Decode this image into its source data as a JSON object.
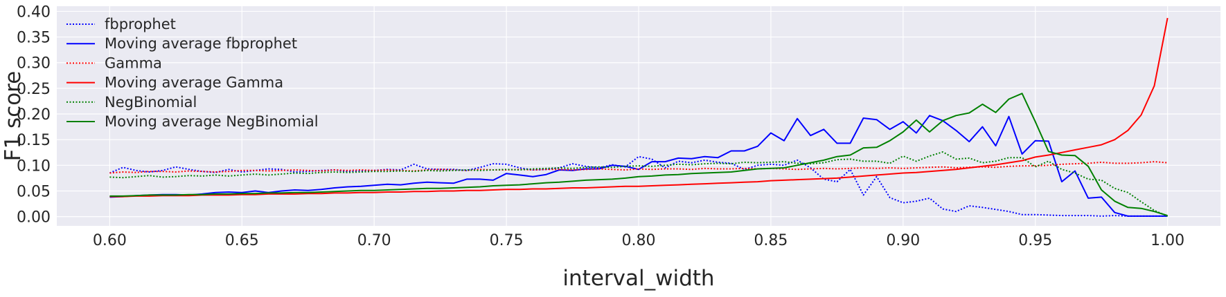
{
  "chart_data": {
    "type": "line",
    "xlabel": "interval_width",
    "ylabel": "F1 score",
    "xlim": [
      0.58,
      1.02
    ],
    "ylim": [
      -0.018,
      0.41
    ],
    "xticks": [
      0.6,
      0.65,
      0.7,
      0.75,
      0.8,
      0.85,
      0.9,
      0.95,
      1.0
    ],
    "xtick_labels": [
      "0.60",
      "0.65",
      "0.70",
      "0.75",
      "0.80",
      "0.85",
      "0.90",
      "0.95",
      "1.00"
    ],
    "yticks": [
      0.0,
      0.05,
      0.1,
      0.15,
      0.2,
      0.25,
      0.3,
      0.35,
      0.4
    ],
    "ytick_labels": [
      "0.00",
      "0.05",
      "0.10",
      "0.15",
      "0.20",
      "0.25",
      "0.30",
      "0.35",
      "0.40"
    ],
    "grid": true,
    "legend_position": "top-left",
    "x": [
      0.6,
      0.605,
      0.61,
      0.615,
      0.62,
      0.625,
      0.63,
      0.635,
      0.64,
      0.645,
      0.65,
      0.655,
      0.66,
      0.665,
      0.67,
      0.675,
      0.68,
      0.685,
      0.69,
      0.695,
      0.7,
      0.705,
      0.71,
      0.715,
      0.72,
      0.725,
      0.73,
      0.735,
      0.74,
      0.745,
      0.75,
      0.755,
      0.76,
      0.765,
      0.77,
      0.775,
      0.78,
      0.785,
      0.79,
      0.795,
      0.8,
      0.805,
      0.81,
      0.815,
      0.82,
      0.825,
      0.83,
      0.835,
      0.84,
      0.845,
      0.85,
      0.855,
      0.86,
      0.865,
      0.87,
      0.875,
      0.88,
      0.885,
      0.89,
      0.895,
      0.9,
      0.905,
      0.91,
      0.915,
      0.92,
      0.925,
      0.93,
      0.935,
      0.94,
      0.945,
      0.95,
      0.955,
      0.96,
      0.965,
      0.97,
      0.975,
      0.98,
      0.985,
      0.99,
      0.995,
      1.0
    ],
    "series": [
      {
        "name": "fbprophet",
        "color": "#0000ff",
        "style": "dotted",
        "values": [
          0.085,
          0.096,
          0.09,
          0.087,
          0.09,
          0.097,
          0.092,
          0.088,
          0.086,
          0.092,
          0.087,
          0.09,
          0.093,
          0.092,
          0.087,
          0.088,
          0.09,
          0.091,
          0.088,
          0.089,
          0.09,
          0.092,
          0.091,
          0.102,
          0.093,
          0.092,
          0.092,
          0.09,
          0.096,
          0.103,
          0.102,
          0.095,
          0.091,
          0.092,
          0.095,
          0.103,
          0.098,
          0.095,
          0.101,
          0.097,
          0.117,
          0.112,
          0.095,
          0.108,
          0.105,
          0.11,
          0.106,
          0.104,
          0.092,
          0.1,
          0.102,
          0.1,
          0.11,
          0.095,
          0.073,
          0.068,
          0.092,
          0.042,
          0.078,
          0.037,
          0.027,
          0.03,
          0.036,
          0.015,
          0.01,
          0.021,
          0.018,
          0.014,
          0.01,
          0.004,
          0.004,
          0.003,
          0.002,
          0.002,
          0.002,
          0.001,
          0.002,
          0.001,
          0.001,
          0.001,
          0.001
        ]
      },
      {
        "name": "Moving average fbprophet",
        "color": "#0000ff",
        "style": "solid",
        "values": [
          0.038,
          0.039,
          0.041,
          0.042,
          0.043,
          0.043,
          0.042,
          0.044,
          0.047,
          0.048,
          0.047,
          0.05,
          0.047,
          0.05,
          0.052,
          0.051,
          0.053,
          0.056,
          0.058,
          0.059,
          0.061,
          0.063,
          0.062,
          0.065,
          0.067,
          0.066,
          0.065,
          0.073,
          0.073,
          0.071,
          0.084,
          0.081,
          0.078,
          0.082,
          0.091,
          0.09,
          0.093,
          0.093,
          0.1,
          0.098,
          0.092,
          0.107,
          0.107,
          0.114,
          0.113,
          0.117,
          0.115,
          0.128,
          0.128,
          0.137,
          0.163,
          0.148,
          0.191,
          0.158,
          0.17,
          0.143,
          0.143,
          0.192,
          0.189,
          0.17,
          0.185,
          0.163,
          0.197,
          0.187,
          0.168,
          0.146,
          0.175,
          0.138,
          0.195,
          0.122,
          0.148,
          0.147,
          0.068,
          0.089,
          0.036,
          0.038,
          0.008,
          0.001,
          0.001,
          0.001,
          0.001
        ]
      },
      {
        "name": "Gamma",
        "color": "#ff0000",
        "style": "dotted",
        "values": [
          0.085,
          0.087,
          0.086,
          0.088,
          0.088,
          0.087,
          0.089,
          0.088,
          0.087,
          0.088,
          0.09,
          0.09,
          0.089,
          0.09,
          0.091,
          0.09,
          0.089,
          0.091,
          0.09,
          0.091,
          0.09,
          0.091,
          0.09,
          0.089,
          0.091,
          0.092,
          0.091,
          0.09,
          0.092,
          0.091,
          0.091,
          0.092,
          0.091,
          0.092,
          0.092,
          0.091,
          0.092,
          0.093,
          0.092,
          0.091,
          0.093,
          0.092,
          0.093,
          0.093,
          0.092,
          0.094,
          0.093,
          0.093,
          0.094,
          0.093,
          0.094,
          0.093,
          0.092,
          0.093,
          0.094,
          0.093,
          0.094,
          0.095,
          0.094,
          0.095,
          0.094,
          0.095,
          0.096,
          0.097,
          0.095,
          0.096,
          0.097,
          0.096,
          0.098,
          0.099,
          0.099,
          0.1,
          0.102,
          0.103,
          0.104,
          0.106,
          0.104,
          0.104,
          0.105,
          0.107,
          0.105
        ]
      },
      {
        "name": "Moving average Gamma",
        "color": "#ff0000",
        "style": "solid",
        "values": [
          0.039,
          0.039,
          0.04,
          0.04,
          0.041,
          0.041,
          0.041,
          0.042,
          0.042,
          0.042,
          0.043,
          0.043,
          0.044,
          0.044,
          0.044,
          0.045,
          0.045,
          0.046,
          0.046,
          0.047,
          0.047,
          0.048,
          0.048,
          0.049,
          0.049,
          0.05,
          0.05,
          0.051,
          0.051,
          0.052,
          0.053,
          0.053,
          0.054,
          0.054,
          0.055,
          0.056,
          0.056,
          0.057,
          0.058,
          0.059,
          0.059,
          0.06,
          0.061,
          0.062,
          0.063,
          0.064,
          0.065,
          0.066,
          0.067,
          0.068,
          0.07,
          0.071,
          0.072,
          0.073,
          0.074,
          0.075,
          0.077,
          0.079,
          0.081,
          0.083,
          0.085,
          0.086,
          0.088,
          0.09,
          0.092,
          0.095,
          0.098,
          0.101,
          0.105,
          0.109,
          0.116,
          0.12,
          0.125,
          0.13,
          0.135,
          0.14,
          0.15,
          0.168,
          0.198,
          0.255,
          0.387
        ]
      },
      {
        "name": "NegBinomial",
        "color": "#008000",
        "style": "dotted",
        "values": [
          0.077,
          0.076,
          0.078,
          0.08,
          0.077,
          0.078,
          0.08,
          0.079,
          0.081,
          0.079,
          0.081,
          0.083,
          0.081,
          0.083,
          0.085,
          0.084,
          0.086,
          0.087,
          0.086,
          0.087,
          0.088,
          0.088,
          0.089,
          0.088,
          0.09,
          0.089,
          0.09,
          0.091,
          0.09,
          0.091,
          0.092,
          0.091,
          0.093,
          0.094,
          0.095,
          0.094,
          0.096,
          0.097,
          0.096,
          0.098,
          0.099,
          0.098,
          0.1,
          0.102,
          0.101,
          0.103,
          0.104,
          0.103,
          0.106,
          0.105,
          0.106,
          0.107,
          0.104,
          0.103,
          0.105,
          0.111,
          0.112,
          0.108,
          0.108,
          0.104,
          0.118,
          0.108,
          0.118,
          0.126,
          0.112,
          0.114,
          0.105,
          0.108,
          0.115,
          0.115,
          0.097,
          0.108,
          0.092,
          0.085,
          0.073,
          0.071,
          0.055,
          0.047,
          0.029,
          0.012,
          0.001
        ]
      },
      {
        "name": "Moving average NegBinomial",
        "color": "#008000",
        "style": "solid",
        "values": [
          0.04,
          0.04,
          0.041,
          0.042,
          0.042,
          0.042,
          0.043,
          0.043,
          0.044,
          0.044,
          0.045,
          0.045,
          0.046,
          0.046,
          0.047,
          0.047,
          0.048,
          0.049,
          0.05,
          0.051,
          0.051,
          0.052,
          0.053,
          0.054,
          0.055,
          0.055,
          0.056,
          0.057,
          0.058,
          0.06,
          0.061,
          0.062,
          0.064,
          0.066,
          0.067,
          0.069,
          0.071,
          0.072,
          0.073,
          0.075,
          0.078,
          0.079,
          0.081,
          0.082,
          0.084,
          0.085,
          0.086,
          0.087,
          0.09,
          0.093,
          0.094,
          0.095,
          0.1,
          0.105,
          0.11,
          0.117,
          0.12,
          0.134,
          0.135,
          0.148,
          0.165,
          0.188,
          0.165,
          0.187,
          0.197,
          0.202,
          0.219,
          0.203,
          0.229,
          0.24,
          0.185,
          0.127,
          0.12,
          0.119,
          0.098,
          0.052,
          0.03,
          0.018,
          0.016,
          0.01,
          0.002
        ]
      }
    ]
  }
}
